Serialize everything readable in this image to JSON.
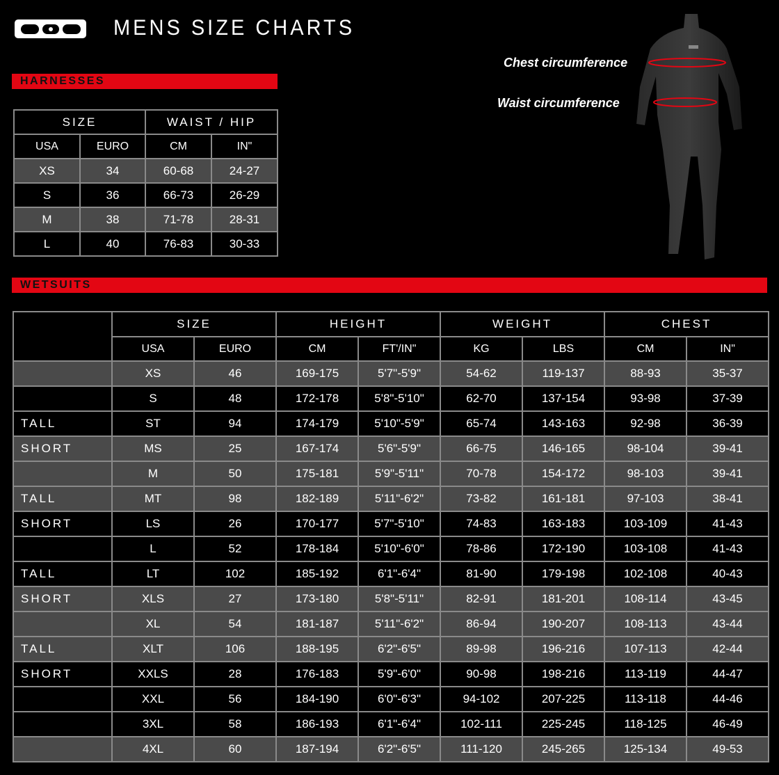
{
  "header": {
    "logo": "ION",
    "title": "MENS SIZE CHARTS"
  },
  "figure": {
    "chest_label": "Chest circumference",
    "waist_label": "Waist circumference",
    "accent": "#e30613"
  },
  "harnesses": {
    "section_label": "HARNESSES",
    "groups": [
      "SIZE",
      "WAIST / HIP"
    ],
    "columns": [
      "USA",
      "EURO",
      "CM",
      "IN\""
    ],
    "rows": [
      [
        "XS",
        "34",
        "60-68",
        "24-27"
      ],
      [
        "S",
        "36",
        "66-73",
        "26-29"
      ],
      [
        "M",
        "38",
        "71-78",
        "28-31"
      ],
      [
        "L",
        "40",
        "76-83",
        "30-33"
      ]
    ],
    "shaded": [
      true,
      false,
      true,
      false
    ]
  },
  "wetsuits": {
    "section_label": "WETSUITS",
    "groups": [
      "SIZE",
      "HEIGHT",
      "WEIGHT",
      "CHEST"
    ],
    "columns": [
      "USA",
      "EURO",
      "CM",
      "FT'/IN\"",
      "KG",
      "LBS",
      "CM",
      "IN\""
    ],
    "rows": [
      [
        "",
        "XS",
        "46",
        "169-175",
        "5'7\"-5'9\"",
        "54-62",
        "119-137",
        "88-93",
        "35-37"
      ],
      [
        "",
        "S",
        "48",
        "172-178",
        "5'8\"-5'10\"",
        "62-70",
        "137-154",
        "93-98",
        "37-39"
      ],
      [
        "TALL",
        "ST",
        "94",
        "174-179",
        "5'10\"-5'9\"",
        "65-74",
        "143-163",
        "92-98",
        "36-39"
      ],
      [
        "SHORT",
        "MS",
        "25",
        "167-174",
        "5'6\"-5'9\"",
        "66-75",
        "146-165",
        "98-104",
        "39-41"
      ],
      [
        "",
        "M",
        "50",
        "175-181",
        "5'9\"-5'11\"",
        "70-78",
        "154-172",
        "98-103",
        "39-41"
      ],
      [
        "TALL",
        "MT",
        "98",
        "182-189",
        "5'11\"-6'2\"",
        "73-82",
        "161-181",
        "97-103",
        "38-41"
      ],
      [
        "SHORT",
        "LS",
        "26",
        "170-177",
        "5'7\"-5'10\"",
        "74-83",
        "163-183",
        "103-109",
        "41-43"
      ],
      [
        "",
        "L",
        "52",
        "178-184",
        "5'10\"-6'0\"",
        "78-86",
        "172-190",
        "103-108",
        "41-43"
      ],
      [
        "TALL",
        "LT",
        "102",
        "185-192",
        "6'1\"-6'4\"",
        "81-90",
        "179-198",
        "102-108",
        "40-43"
      ],
      [
        "SHORT",
        "XLS",
        "27",
        "173-180",
        "5'8\"-5'11\"",
        "82-91",
        "181-201",
        "108-114",
        "43-45"
      ],
      [
        "",
        "XL",
        "54",
        "181-187",
        "5'11\"-6'2\"",
        "86-94",
        "190-207",
        "108-113",
        "43-44"
      ],
      [
        "TALL",
        "XLT",
        "106",
        "188-195",
        "6'2\"-6'5\"",
        "89-98",
        "196-216",
        "107-113",
        "42-44"
      ],
      [
        "SHORT",
        "XXLS",
        "28",
        "176-183",
        "5'9\"-6'0\"",
        "90-98",
        "198-216",
        "113-119",
        "44-47"
      ],
      [
        "",
        "XXL",
        "56",
        "184-190",
        "6'0\"-6'3\"",
        "94-102",
        "207-225",
        "113-118",
        "44-46"
      ],
      [
        "",
        "3XL",
        "58",
        "186-193",
        "6'1\"-6'4\"",
        "102-111",
        "225-245",
        "118-125",
        "46-49"
      ],
      [
        "",
        "4XL",
        "60",
        "187-194",
        "6'2\"-6'5\"",
        "111-120",
        "245-265",
        "125-134",
        "49-53"
      ]
    ],
    "shaded": [
      true,
      false,
      false,
      true,
      true,
      true,
      false,
      false,
      false,
      true,
      true,
      true,
      false,
      false,
      false,
      true
    ]
  }
}
